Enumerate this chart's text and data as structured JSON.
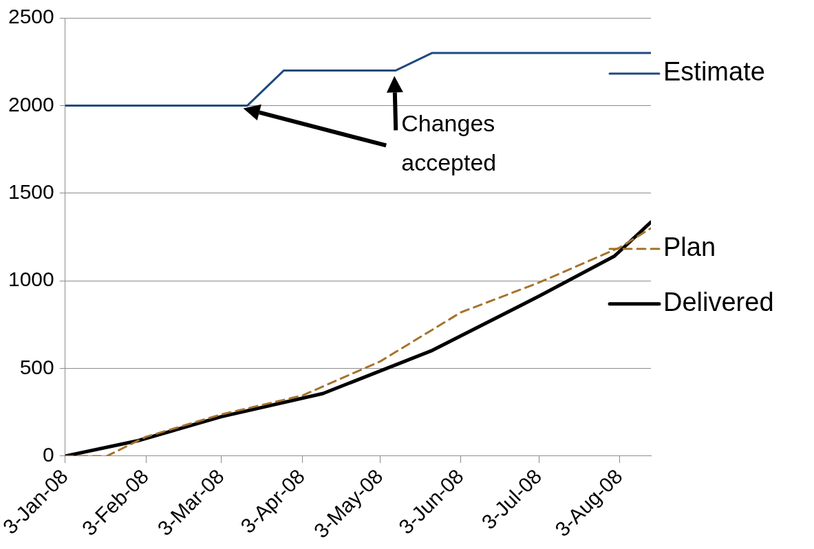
{
  "chart_data": {
    "type": "line",
    "xlim": [
      "2008-01-03",
      "2008-08-15"
    ],
    "xticks": [
      {
        "value": "2008-01-03",
        "label": "3-Jan-08"
      },
      {
        "value": "2008-02-03",
        "label": "3-Feb-08"
      },
      {
        "value": "2008-03-03",
        "label": "3-Mar-08"
      },
      {
        "value": "2008-04-03",
        "label": "3-Apr-08"
      },
      {
        "value": "2008-05-03",
        "label": "3-May-08"
      },
      {
        "value": "2008-06-03",
        "label": "3-Jun-08"
      },
      {
        "value": "2008-07-03",
        "label": "3-Jul-08"
      },
      {
        "value": "2008-08-03",
        "label": "3-Aug-08"
      }
    ],
    "ylim": [
      0,
      2500
    ],
    "yticks": [
      0,
      500,
      1000,
      1500,
      2000,
      2500
    ],
    "grid": "y",
    "legend": "right",
    "marker": "none",
    "annotations": [
      "Changes accepted"
    ],
    "series": [
      {
        "name": "Estimate",
        "color": "#1f497d",
        "line_style": "solid",
        "x": [
          "2008-01-03",
          "2008-03-13",
          "2008-03-27",
          "2008-05-09",
          "2008-05-23",
          "2008-08-15"
        ],
        "values": [
          2000,
          2000,
          2200,
          2200,
          2300,
          2300
        ]
      },
      {
        "name": "Plan",
        "color": "#a5732c",
        "line_style": "dashed",
        "x": [
          "2008-01-03",
          "2008-01-19",
          "2008-02-03",
          "2008-03-03",
          "2008-04-03",
          "2008-05-03",
          "2008-06-03",
          "2008-07-03",
          "2008-08-03",
          "2008-08-15"
        ],
        "values": [
          0,
          0,
          110,
          238,
          345,
          540,
          820,
          990,
          1190,
          1300
        ]
      },
      {
        "name": "Delivered",
        "color": "#000000",
        "line_style": "solid",
        "x": [
          "2008-01-03",
          "2008-01-31",
          "2008-03-03",
          "2008-04-11",
          "2008-05-23",
          "2008-07-03",
          "2008-08-01",
          "2008-08-15"
        ],
        "values": [
          0,
          88,
          225,
          357,
          603,
          912,
          1141,
          1335
        ]
      }
    ]
  }
}
